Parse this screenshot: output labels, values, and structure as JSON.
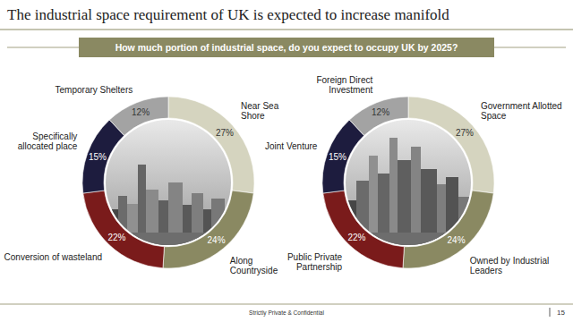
{
  "header": {
    "title": "The industrial space requirement of UK is expected to increase manifold",
    "question": "How much portion of industrial space, do you expect to occupy UK by 2025?"
  },
  "chart_data": [
    {
      "type": "donut",
      "categories": [
        "Near Sea Shore",
        "Along Countryside",
        "Conversion of wasteland",
        "Specifically allocated place",
        "Temporary Shelters"
      ],
      "values": [
        27,
        24,
        22,
        15,
        12
      ],
      "value_labels": [
        "27%",
        "24%",
        "22%",
        "15%",
        "12%"
      ],
      "colors": [
        "#d5d4bf",
        "#8a8962",
        "#7a1b1b",
        "#1d1c3e",
        "#a3a3a3"
      ],
      "data_labels": true
    },
    {
      "type": "donut",
      "categories": [
        "Government Allotted Space",
        "Owned by Industrial Leaders",
        "Public Private Partnership",
        "Joint Venture",
        "Foreign Direct Investment"
      ],
      "values": [
        27,
        24,
        22,
        15,
        12
      ],
      "value_labels": [
        "27%",
        "24%",
        "22%",
        "15%",
        "12%"
      ],
      "colors": [
        "#d5d4bf",
        "#8a8962",
        "#7a1b1b",
        "#1d1c3e",
        "#a3a3a3"
      ],
      "data_labels": true
    }
  ],
  "footer": {
    "text": "Strictly Private & Confidential",
    "page": 15
  }
}
